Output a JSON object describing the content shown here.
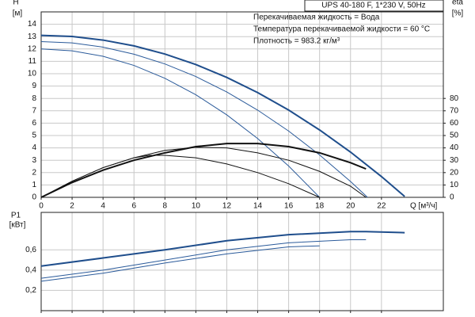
{
  "chart_data": [
    {
      "type": "line",
      "title": "UPS 40-180 F, 1*230 V, 50Hz",
      "annotations": [
        "Перекачиваемая жидкость = Вода",
        "Температура перекачиваемой жидкости = 60 °C",
        "Плотность = 983.2 кг/м³"
      ],
      "xlabel": "Q [м³/ч]",
      "ylabel": "H",
      "yunit": "[м]",
      "y2label": "eta",
      "y2unit": "[%]",
      "xlim": [
        0,
        26
      ],
      "xticks": [
        0,
        2,
        4,
        6,
        8,
        10,
        12,
        14,
        16,
        18,
        20,
        22
      ],
      "ylim": [
        0,
        15
      ],
      "yticks": [
        0,
        1,
        2,
        3,
        4,
        5,
        6,
        7,
        8,
        9,
        10,
        11,
        12,
        13,
        14
      ],
      "y2lim": [
        0,
        150
      ],
      "y2ticks": [
        0,
        10,
        20,
        30,
        40,
        50,
        60,
        70,
        80
      ],
      "grid": true,
      "series": [
        {
          "color": "#1f4e8c",
          "width": 2,
          "x": [
            0,
            2,
            4,
            6,
            8,
            10,
            12,
            14,
            16,
            18,
            20,
            22,
            23.5
          ],
          "values": [
            13.1,
            13.01,
            12.72,
            12.25,
            11.59,
            10.74,
            9.7,
            8.47,
            7.06,
            5.45,
            3.66,
            1.68,
            0.07
          ]
        },
        {
          "color": "#2a5a9a",
          "width": 1,
          "x": [
            0,
            2,
            4,
            6,
            8,
            10,
            12,
            14,
            16,
            18,
            20,
            21.1
          ],
          "values": [
            12.6,
            12.49,
            12.15,
            11.58,
            10.79,
            9.77,
            8.52,
            7.05,
            5.36,
            3.43,
            1.28,
            0
          ]
        },
        {
          "color": "#2a5a9a",
          "width": 1,
          "x": [
            0,
            2,
            4,
            6,
            8,
            10,
            12,
            14,
            16,
            18
          ],
          "values": [
            12,
            11.85,
            11.41,
            10.67,
            9.63,
            8.3,
            6.67,
            4.75,
            2.53,
            0
          ]
        },
        {
          "color": "#111111",
          "width": 2,
          "axis": "y2",
          "x": [
            0,
            2,
            4,
            6,
            8,
            10,
            12,
            14,
            16,
            18,
            20,
            21
          ],
          "values": [
            0,
            12,
            22,
            30,
            36,
            41,
            43.5,
            43.5,
            41,
            36,
            28,
            23
          ]
        },
        {
          "color": "#111111",
          "width": 1,
          "axis": "y2",
          "x": [
            0,
            2,
            4,
            6,
            8,
            10,
            12,
            14,
            16,
            18,
            20,
            21
          ],
          "values": [
            0,
            13,
            24,
            32,
            38,
            40.5,
            40,
            36,
            30,
            21,
            9,
            0
          ]
        },
        {
          "color": "#111111",
          "width": 1,
          "axis": "y2",
          "x": [
            0,
            2,
            4,
            6,
            7,
            8,
            10,
            12,
            14,
            16,
            18
          ],
          "values": [
            0,
            13,
            24,
            32,
            34,
            34,
            32,
            27,
            20,
            11,
            0
          ]
        }
      ]
    },
    {
      "type": "line",
      "ylabel": "P1",
      "yunit": "[кВт]",
      "xlim": [
        0,
        26
      ],
      "xticks": [
        0,
        2,
        4,
        6,
        8,
        10,
        12,
        14,
        16,
        18,
        20,
        22
      ],
      "ylim": [
        0,
        0.97
      ],
      "yticks": [
        {
          "value": 0.2,
          "label": "0,2"
        },
        {
          "value": 0.4,
          "label": "0,4"
        },
        {
          "value": 0.6,
          "label": "0,6"
        }
      ],
      "grid": true,
      "series": [
        {
          "color": "#1f4e8c",
          "width": 2,
          "x": [
            0,
            4,
            8,
            12,
            16,
            20,
            21,
            23.5
          ],
          "values": [
            0.44,
            0.52,
            0.6,
            0.69,
            0.75,
            0.78,
            0.78,
            0.77
          ]
        },
        {
          "color": "#2a5a9a",
          "width": 1,
          "x": [
            0,
            4,
            8,
            12,
            16,
            20,
            21
          ],
          "values": [
            0.32,
            0.4,
            0.5,
            0.6,
            0.67,
            0.7,
            0.7
          ]
        },
        {
          "color": "#2a5a9a",
          "width": 1,
          "x": [
            0,
            4,
            8,
            12,
            16,
            18
          ],
          "values": [
            0.29,
            0.37,
            0.47,
            0.56,
            0.63,
            0.64
          ]
        }
      ]
    }
  ]
}
